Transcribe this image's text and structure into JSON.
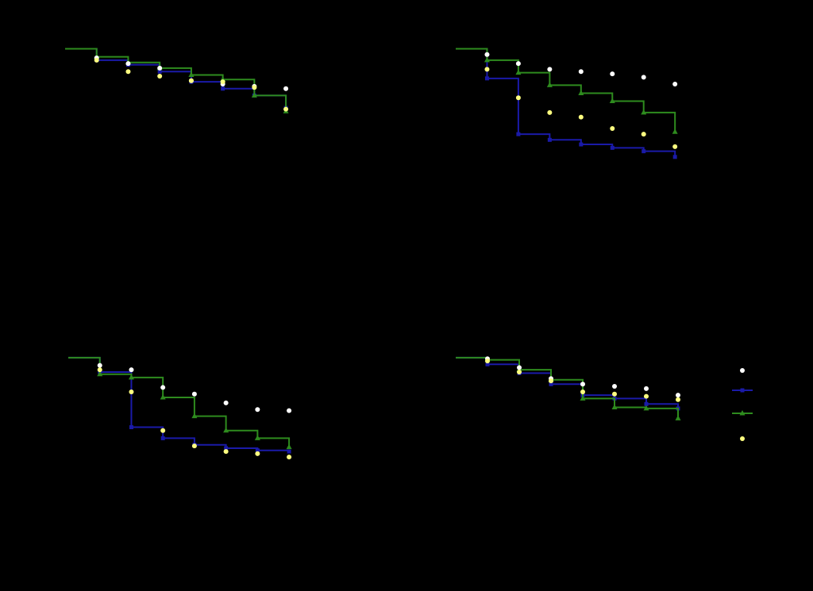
{
  "background": "#000000",
  "colors": {
    "blue": "#1a1aa8",
    "green": "#2e8b1e",
    "white": "#ffffff",
    "yellow": "#ffff80"
  },
  "chart_data": [
    {
      "type": "line",
      "panel": "top-left",
      "title": "",
      "xlabel": "",
      "ylabel": "",
      "x": [
        0,
        1,
        2,
        3,
        4,
        5,
        6
      ],
      "xlim": [
        -1,
        6.3
      ],
      "ylim": [
        0,
        1.15
      ],
      "grid": false,
      "series": [
        {
          "kind": "step",
          "color": "blue",
          "marker": "square",
          "lead": 1.0,
          "values": [
            0.9,
            0.86,
            0.8,
            0.71,
            0.65,
            0.59,
            0.48
          ]
        },
        {
          "kind": "step",
          "color": "green",
          "marker": "triangle",
          "lead": 1.0,
          "values": [
            0.93,
            0.88,
            0.83,
            0.77,
            0.73,
            0.59,
            0.45
          ]
        },
        {
          "kind": "points",
          "color": "white",
          "values": [
            0.92,
            0.87,
            0.83,
            0.72,
            0.69,
            0.67,
            0.65
          ]
        },
        {
          "kind": "points",
          "color": "yellow",
          "values": [
            0.9,
            0.8,
            0.76,
            0.72,
            0.71,
            0.66,
            0.47
          ]
        }
      ]
    },
    {
      "type": "line",
      "panel": "top-right",
      "title": "",
      "xlabel": "",
      "ylabel": "",
      "x": [
        0,
        1,
        2,
        3,
        4,
        5,
        6
      ],
      "xlim": [
        -1,
        6.3
      ],
      "ylim": [
        0,
        1.15
      ],
      "grid": false,
      "series": [
        {
          "kind": "step",
          "color": "blue",
          "marker": "square",
          "lead": 1.0,
          "values": [
            0.74,
            0.25,
            0.2,
            0.16,
            0.13,
            0.1,
            0.05
          ]
        },
        {
          "kind": "step",
          "color": "green",
          "marker": "triangle",
          "lead": 1.0,
          "values": [
            0.9,
            0.79,
            0.68,
            0.61,
            0.54,
            0.44,
            0.27
          ]
        },
        {
          "kind": "points",
          "color": "white",
          "values": [
            0.95,
            0.87,
            0.82,
            0.8,
            0.78,
            0.75,
            0.69
          ]
        },
        {
          "kind": "points",
          "color": "yellow",
          "values": [
            0.82,
            0.57,
            0.44,
            0.4,
            0.3,
            0.25,
            0.14
          ]
        }
      ]
    },
    {
      "type": "line",
      "panel": "bottom-left",
      "title": "",
      "xlabel": "",
      "ylabel": "",
      "x": [
        0,
        1,
        2,
        3,
        4,
        5,
        6
      ],
      "xlim": [
        -1,
        6.3
      ],
      "ylim": [
        0,
        1.15
      ],
      "grid": false,
      "series": [
        {
          "kind": "step",
          "color": "blue",
          "marker": "square",
          "lead": 1.0,
          "values": [
            0.87,
            0.37,
            0.27,
            0.21,
            0.18,
            0.16,
            0.15
          ]
        },
        {
          "kind": "step",
          "color": "green",
          "marker": "triangle",
          "lead": 1.0,
          "values": [
            0.85,
            0.82,
            0.64,
            0.47,
            0.34,
            0.27,
            0.19
          ]
        },
        {
          "kind": "points",
          "color": "white",
          "values": [
            0.93,
            0.89,
            0.73,
            0.67,
            0.59,
            0.53,
            0.52
          ]
        },
        {
          "kind": "points",
          "color": "yellow",
          "values": [
            0.89,
            0.69,
            0.34,
            0.2,
            0.15,
            0.13,
            0.1
          ]
        }
      ]
    },
    {
      "type": "line",
      "panel": "bottom-right",
      "title": "",
      "xlabel": "",
      "ylabel": "",
      "x": [
        0,
        1,
        2,
        3,
        4,
        5,
        6
      ],
      "xlim": [
        -1,
        6.3
      ],
      "ylim": [
        0,
        1.15
      ],
      "grid": false,
      "legend": "right",
      "series": [
        {
          "kind": "step",
          "color": "blue",
          "marker": "square",
          "lead": 1.0,
          "values": [
            0.94,
            0.86,
            0.76,
            0.66,
            0.63,
            0.58,
            0.54
          ]
        },
        {
          "kind": "step",
          "color": "green",
          "marker": "triangle",
          "lead": 1.0,
          "values": [
            0.98,
            0.89,
            0.8,
            0.63,
            0.55,
            0.54,
            0.45
          ]
        },
        {
          "kind": "points",
          "color": "white",
          "values": [
            0.99,
            0.91,
            0.81,
            0.76,
            0.74,
            0.72,
            0.66
          ]
        },
        {
          "kind": "points",
          "color": "yellow",
          "values": [
            0.97,
            0.87,
            0.79,
            0.69,
            0.67,
            0.65,
            0.62
          ]
        }
      ]
    }
  ],
  "legend": {
    "entries": [
      {
        "color": "white",
        "kind": "points"
      },
      {
        "color": "blue",
        "kind": "step",
        "marker": "square"
      },
      {
        "color": "green",
        "kind": "step",
        "marker": "triangle"
      },
      {
        "color": "yellow",
        "kind": "points"
      }
    ]
  }
}
